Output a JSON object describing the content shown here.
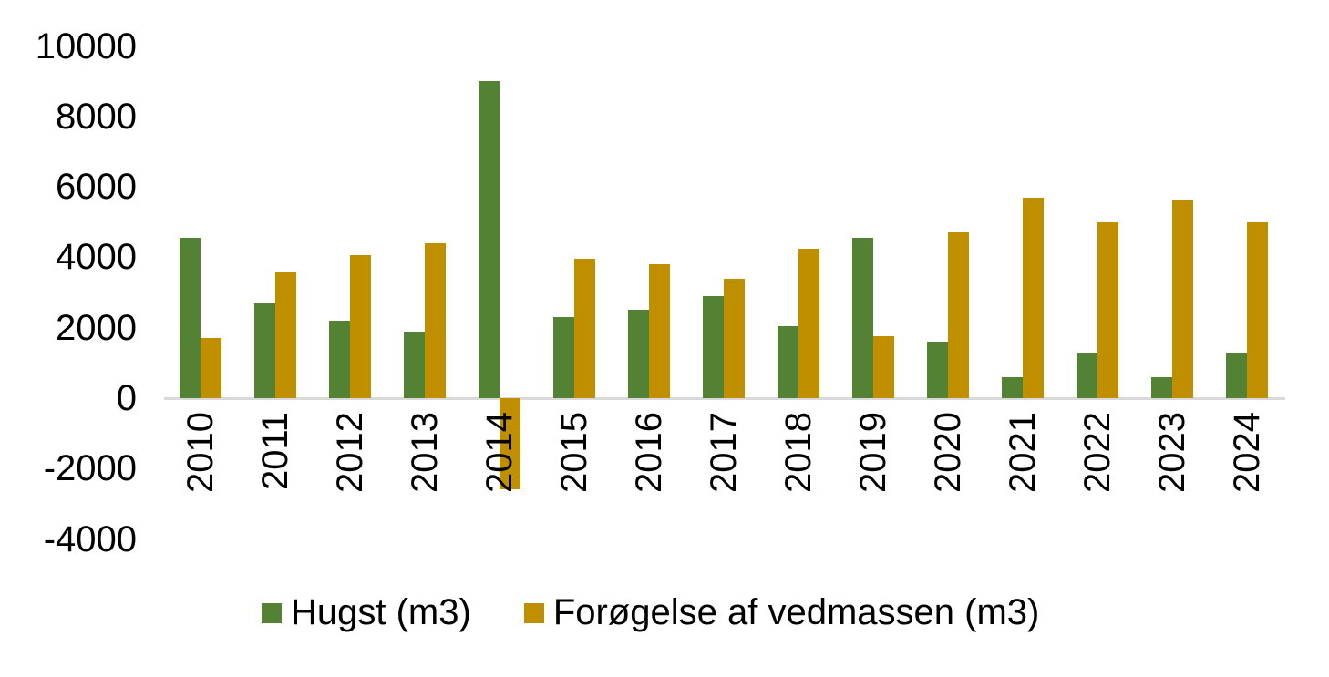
{
  "chart_data": {
    "type": "bar",
    "title": "",
    "xlabel": "",
    "ylabel": "",
    "categories": [
      "2010",
      "2011",
      "2012",
      "2013",
      "2014",
      "2015",
      "2016",
      "2017",
      "2018",
      "2019",
      "2020",
      "2021",
      "2022",
      "2023",
      "2024"
    ],
    "series": [
      {
        "name": "Hugst (m3)",
        "color": "#548235",
        "values": [
          4550,
          2700,
          2200,
          1900,
          9000,
          2300,
          2500,
          2900,
          2050,
          4550,
          1600,
          600,
          1300,
          600,
          1300
        ]
      },
      {
        "name": "Forøgelse af vedmassen (m3)",
        "color": "#BF8F00",
        "values": [
          1700,
          3600,
          4050,
          4400,
          -2600,
          3950,
          3800,
          3400,
          4250,
          1750,
          4700,
          5700,
          5000,
          5650,
          5000
        ]
      }
    ],
    "ylim": [
      -4000,
      10000
    ],
    "y_ticks": [
      10000,
      8000,
      6000,
      4000,
      2000,
      0,
      -2000,
      -4000
    ],
    "grid": "off",
    "legend_position": "bottom"
  },
  "colors": {
    "axis_line": "#D9D9D9",
    "text": "#000000",
    "background": "#FFFFFF"
  }
}
